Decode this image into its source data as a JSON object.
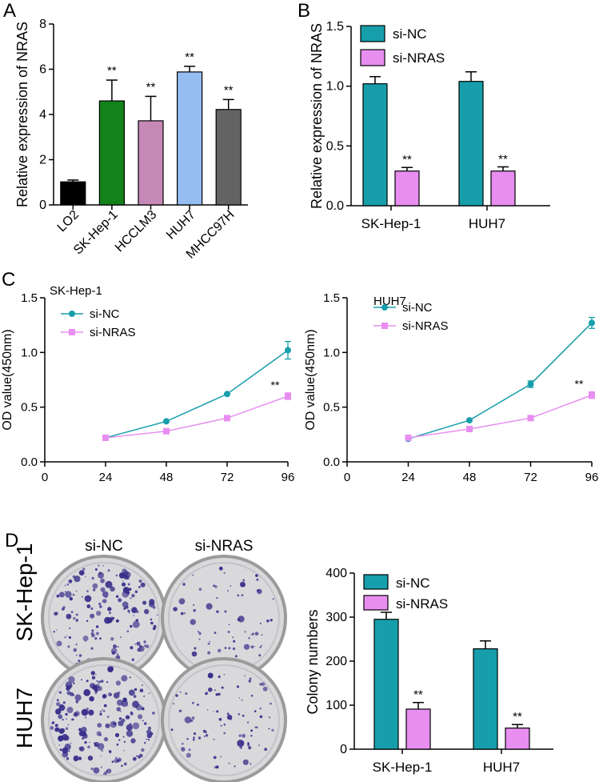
{
  "panel_labels": [
    "A",
    "B",
    "C",
    "D"
  ],
  "colors": {
    "lo2": "#000000",
    "sk": "#13821a",
    "hcc": "#c689b7",
    "huh7": "#95bdf2",
    "mhcc": "#636363",
    "si_nc": "#179eab",
    "si_nras": "#e78ef0",
    "dish_rim": "#9b9b9b",
    "dish_face": "#d9d9dc",
    "colony": "#3a2f8a"
  },
  "chart_data": [
    {
      "id": "A",
      "type": "bar",
      "title": "",
      "ylabel": "Relative expression of NRAS",
      "xlabel": "",
      "ylim": [
        0,
        8
      ],
      "yticks": [
        0,
        2,
        4,
        6,
        8
      ],
      "categories": [
        "LO2",
        "SK-Hep-1",
        "HCCLM3",
        "HUH7",
        "MHCC97H"
      ],
      "values": [
        1.02,
        4.6,
        3.72,
        5.88,
        4.22
      ],
      "errors": [
        0.08,
        0.92,
        1.08,
        0.25,
        0.44
      ],
      "significance": [
        "",
        "**",
        "**",
        "**",
        "**"
      ]
    },
    {
      "id": "B",
      "type": "bar",
      "title": "",
      "ylabel": "Relative expression of NRAS",
      "xlabel": "",
      "ylim": [
        0,
        1.5
      ],
      "yticks": [
        "0.0",
        "0.5",
        "1.0",
        "1.5"
      ],
      "categories": [
        "SK-Hep-1",
        "HUH7"
      ],
      "series": [
        {
          "name": "si-NC",
          "values": [
            1.02,
            1.04
          ],
          "errors": [
            0.06,
            0.08
          ],
          "significance": [
            "",
            ""
          ]
        },
        {
          "name": "si-NRAS",
          "values": [
            0.29,
            0.29
          ],
          "errors": [
            0.03,
            0.035
          ],
          "significance": [
            "**",
            "**"
          ]
        }
      ],
      "legend": "top-left"
    },
    {
      "id": "C1",
      "type": "line",
      "title": "SK-Hep-1",
      "ylabel": "OD value(450nm)",
      "xlabel": "",
      "ylim": [
        0,
        1.5
      ],
      "yticks": [
        "0.0",
        "0.5",
        "1.0",
        "1.5"
      ],
      "xlim": [
        0,
        96
      ],
      "xticks": [
        "0",
        "24",
        "48",
        "72",
        "96"
      ],
      "x": [
        24,
        48,
        72,
        96
      ],
      "series": [
        {
          "name": "si-NC",
          "values": [
            0.22,
            0.37,
            0.62,
            1.02
          ],
          "errors": [
            0.01,
            0.01,
            0.015,
            0.08
          ]
        },
        {
          "name": "si-NRAS",
          "values": [
            0.22,
            0.28,
            0.4,
            0.6
          ],
          "errors": [
            0.01,
            0.01,
            0.01,
            0.03
          ]
        }
      ],
      "annotation": "**",
      "legend": "top-left"
    },
    {
      "id": "C2",
      "type": "line",
      "title": "HUH7",
      "ylabel": "OD value(450nm)",
      "xlabel": "",
      "ylim": [
        0,
        1.5
      ],
      "yticks": [
        "0.0",
        "0.5",
        "1.0",
        "1.5"
      ],
      "xlim": [
        0,
        96
      ],
      "xticks": [
        "0",
        "24",
        "48",
        "72",
        "96"
      ],
      "x": [
        24,
        48,
        72,
        96
      ],
      "series": [
        {
          "name": "si-NC",
          "values": [
            0.21,
            0.38,
            0.71,
            1.27
          ],
          "errors": [
            0.01,
            0.01,
            0.03,
            0.05
          ]
        },
        {
          "name": "si-NRAS",
          "values": [
            0.22,
            0.3,
            0.4,
            0.61
          ],
          "errors": [
            0.01,
            0.01,
            0.01,
            0.03
          ]
        }
      ],
      "annotation": "**",
      "legend": "top-left"
    },
    {
      "id": "D",
      "type": "bar",
      "title": "",
      "ylabel": "Colony numbers",
      "xlabel": "",
      "ylim": [
        0,
        400
      ],
      "yticks": [
        "0",
        "100",
        "200",
        "300",
        "400"
      ],
      "categories": [
        "SK-Hep-1",
        "HUH7"
      ],
      "series": [
        {
          "name": "si-NC",
          "values": [
            295,
            228
          ],
          "errors": [
            16,
            18
          ],
          "significance": [
            "",
            ""
          ]
        },
        {
          "name": "si-NRAS",
          "values": [
            91,
            48
          ],
          "errors": [
            15,
            8
          ],
          "significance": [
            "**",
            "**"
          ]
        }
      ],
      "legend": "top-left"
    }
  ],
  "colony_panel": {
    "column_headers": [
      "si-NC",
      "si-NRAS"
    ],
    "row_labels": [
      "SK-Hep-1",
      "HUH7"
    ]
  }
}
